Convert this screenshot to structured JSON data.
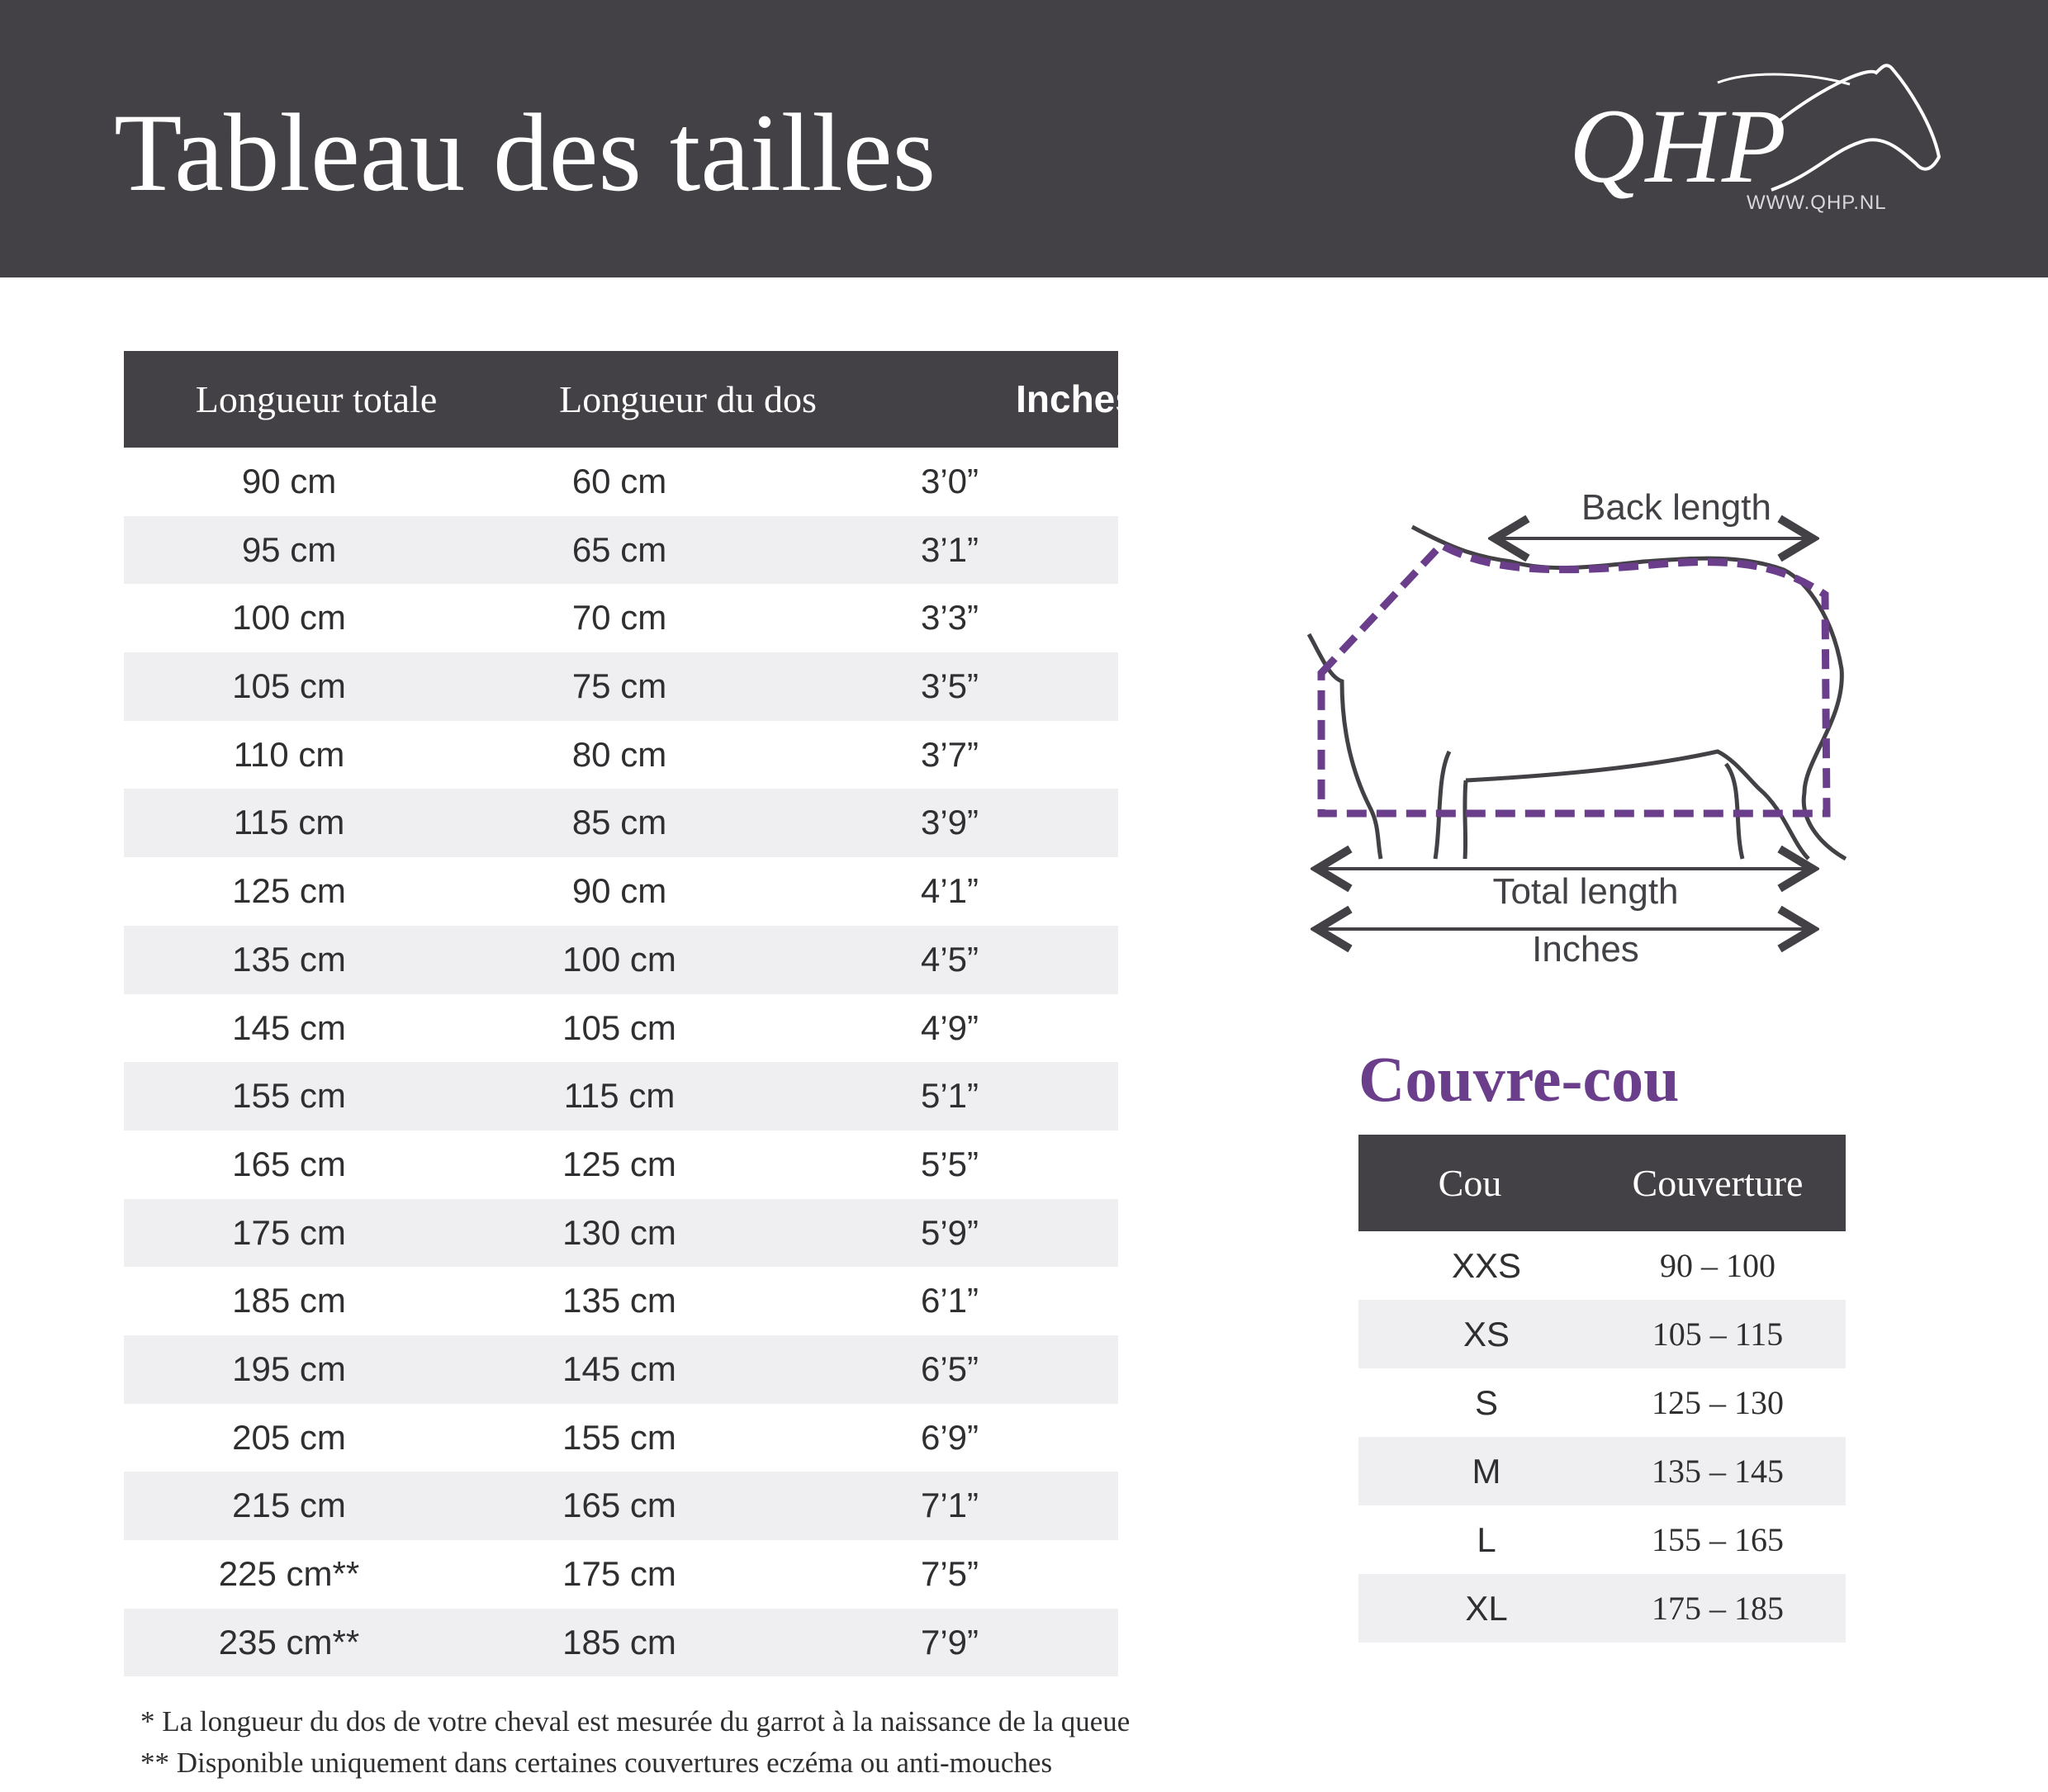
{
  "header": {
    "title": "Tableau des tailles",
    "logo_text": "QHP",
    "logo_url": "WWW.QHP.NL"
  },
  "size_table": {
    "headers": [
      "Longueur totale",
      "Longueur du dos",
      "Inches"
    ],
    "rows": [
      [
        "90 cm",
        "60 cm",
        "3’0”"
      ],
      [
        "95 cm",
        "65 cm",
        "3’1”"
      ],
      [
        "100 cm",
        "70 cm",
        "3’3”"
      ],
      [
        "105 cm",
        "75 cm",
        "3’5”"
      ],
      [
        "110 cm",
        "80 cm",
        "3’7”"
      ],
      [
        "115 cm",
        "85 cm",
        "3’9”"
      ],
      [
        "125 cm",
        "90 cm",
        "4’1”"
      ],
      [
        "135 cm",
        "100 cm",
        "4’5”"
      ],
      [
        "145 cm",
        "105 cm",
        "4’9”"
      ],
      [
        "155 cm",
        "115 cm",
        "5’1”"
      ],
      [
        "165 cm",
        "125 cm",
        "5’5”"
      ],
      [
        "175 cm",
        "130 cm",
        "5’9”"
      ],
      [
        "185 cm",
        "135 cm",
        "6’1”"
      ],
      [
        "195 cm",
        "145 cm",
        "6’5”"
      ],
      [
        "205 cm",
        "155 cm",
        "6’9”"
      ],
      [
        "215 cm",
        "165 cm",
        "7’1”"
      ],
      [
        "225 cm**",
        "175 cm",
        "7’5”"
      ],
      [
        "235 cm**",
        "185 cm",
        "7’9”"
      ]
    ]
  },
  "footnotes": [
    "* La longueur du dos de votre cheval est mesurée du garrot à la naissance de la queue",
    "** Disponible uniquement dans certaines couvertures eczéma ou anti-mouches"
  ],
  "diagram": {
    "back_length_label": "Back length",
    "total_length_label": "Total length",
    "inches_label": "Inches",
    "icon": "horse-blanket-outline-icon",
    "colors": {
      "outline": "#434145",
      "dashed": "#6b3e8c"
    }
  },
  "neck_cover": {
    "title": "Couvre-cou",
    "headers": [
      "Cou",
      "Couverture"
    ],
    "rows": [
      [
        "XXS",
        "90 – 100"
      ],
      [
        "XS",
        "105 – 115"
      ],
      [
        "S",
        "125 – 130"
      ],
      [
        "M",
        "135 – 145"
      ],
      [
        "L",
        "155 – 165"
      ],
      [
        "XL",
        "175 – 185"
      ]
    ]
  },
  "colors": {
    "header_bg": "#434145",
    "alt_row": "#efeff1",
    "accent": "#6b3e8c"
  }
}
